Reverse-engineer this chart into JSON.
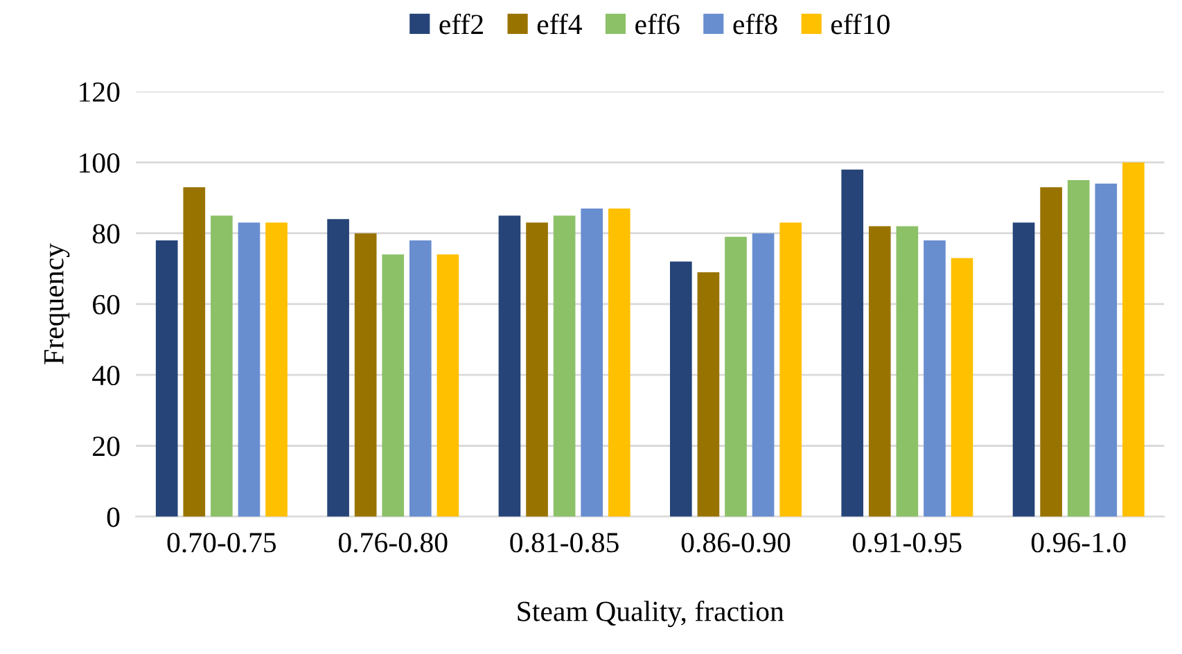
{
  "chart_data": {
    "type": "bar",
    "xlabel": "Steam Quality, fraction",
    "ylabel": "Frequency",
    "categories": [
      "0.70-0.75",
      "0.76-0.80",
      "0.81-0.85",
      "0.86-0.90",
      "0.91-0.95",
      "0.96-1.0"
    ],
    "series": [
      {
        "name": "eff2",
        "color": "#264478",
        "values": [
          78,
          84,
          85,
          72,
          98,
          83
        ]
      },
      {
        "name": "eff4",
        "color": "#997300",
        "values": [
          93,
          80,
          83,
          69,
          82,
          93
        ]
      },
      {
        "name": "eff6",
        "color": "#8cc168",
        "values": [
          85,
          74,
          85,
          79,
          82,
          95
        ]
      },
      {
        "name": "eff8",
        "color": "#698ed0",
        "values": [
          83,
          78,
          87,
          80,
          78,
          94
        ]
      },
      {
        "name": "eff10",
        "color": "#ffc000",
        "values": [
          83,
          74,
          87,
          83,
          73,
          100
        ]
      }
    ],
    "ylim": [
      0,
      120
    ],
    "yticks": [
      0,
      20,
      40,
      60,
      80,
      100,
      120
    ],
    "grid": "y",
    "legend": "top"
  }
}
